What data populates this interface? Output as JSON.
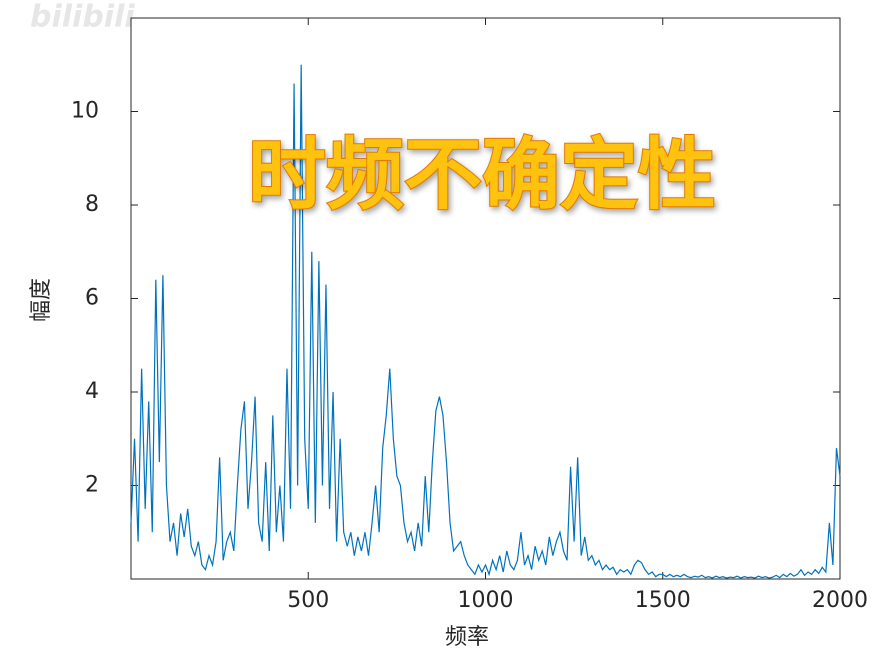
{
  "chart_data": {
    "type": "line",
    "annotation": "时频不确定性",
    "watermark": "bilibili",
    "xlabel": "频率",
    "ylabel": "幅度",
    "xlim": [
      0,
      2000
    ],
    "ylim": [
      0,
      12
    ],
    "xticks": [
      500,
      1000,
      1500,
      2000
    ],
    "yticks": [
      2,
      4,
      6,
      8,
      10
    ],
    "x": [
      0,
      10,
      20,
      30,
      40,
      50,
      60,
      70,
      80,
      90,
      100,
      110,
      120,
      130,
      140,
      150,
      160,
      170,
      180,
      190,
      200,
      210,
      220,
      230,
      240,
      250,
      260,
      270,
      280,
      290,
      300,
      310,
      320,
      330,
      340,
      350,
      360,
      370,
      380,
      390,
      400,
      410,
      420,
      430,
      440,
      450,
      460,
      470,
      480,
      490,
      500,
      510,
      520,
      530,
      540,
      550,
      560,
      570,
      580,
      590,
      600,
      610,
      620,
      630,
      640,
      650,
      660,
      670,
      680,
      690,
      700,
      710,
      720,
      730,
      740,
      750,
      760,
      770,
      780,
      790,
      800,
      810,
      820,
      830,
      840,
      850,
      860,
      870,
      880,
      890,
      900,
      910,
      920,
      930,
      940,
      950,
      960,
      970,
      980,
      990,
      1000,
      1010,
      1020,
      1030,
      1040,
      1050,
      1060,
      1070,
      1080,
      1090,
      1100,
      1110,
      1120,
      1130,
      1140,
      1150,
      1160,
      1170,
      1180,
      1190,
      1200,
      1210,
      1220,
      1230,
      1240,
      1250,
      1260,
      1270,
      1280,
      1290,
      1300,
      1310,
      1320,
      1330,
      1340,
      1350,
      1360,
      1370,
      1380,
      1390,
      1400,
      1410,
      1420,
      1430,
      1440,
      1450,
      1460,
      1470,
      1480,
      1490,
      1500,
      1510,
      1520,
      1530,
      1540,
      1550,
      1560,
      1570,
      1580,
      1590,
      1600,
      1610,
      1620,
      1630,
      1640,
      1650,
      1660,
      1670,
      1680,
      1690,
      1700,
      1710,
      1720,
      1730,
      1740,
      1750,
      1760,
      1770,
      1780,
      1790,
      1800,
      1810,
      1820,
      1830,
      1840,
      1850,
      1860,
      1870,
      1880,
      1890,
      1900,
      1910,
      1920,
      1930,
      1940,
      1950,
      1960,
      1970,
      1980,
      1990,
      2000
    ],
    "series": [
      {
        "color": "#0072bd",
        "values": [
          1.2,
          3.0,
          0.8,
          4.5,
          1.5,
          3.8,
          1.0,
          6.4,
          2.5,
          6.5,
          2.0,
          0.8,
          1.2,
          0.5,
          1.4,
          0.9,
          1.5,
          0.7,
          0.5,
          0.8,
          0.3,
          0.2,
          0.5,
          0.3,
          0.8,
          2.6,
          0.4,
          0.8,
          1.0,
          0.6,
          2.0,
          3.2,
          3.8,
          1.5,
          2.5,
          3.9,
          1.2,
          0.8,
          2.5,
          0.6,
          3.5,
          1.0,
          2.0,
          0.8,
          4.5,
          1.5,
          10.6,
          2.0,
          11.0,
          3.0,
          1.5,
          7.0,
          1.2,
          6.8,
          2.0,
          6.3,
          1.5,
          4.0,
          0.8,
          3.0,
          1.0,
          0.7,
          1.0,
          0.5,
          0.9,
          0.6,
          1.0,
          0.5,
          1.2,
          2.0,
          1.0,
          2.8,
          3.5,
          4.5,
          3.0,
          2.2,
          2.0,
          1.2,
          0.8,
          1.0,
          0.6,
          1.2,
          0.7,
          2.2,
          1.0,
          2.5,
          3.6,
          3.9,
          3.5,
          2.5,
          1.2,
          0.6,
          0.7,
          0.8,
          0.5,
          0.3,
          0.2,
          0.1,
          0.3,
          0.15,
          0.3,
          0.1,
          0.4,
          0.2,
          0.5,
          0.15,
          0.6,
          0.3,
          0.2,
          0.4,
          1.0,
          0.3,
          0.5,
          0.2,
          0.7,
          0.4,
          0.6,
          0.3,
          0.9,
          0.5,
          0.8,
          1.0,
          0.6,
          0.4,
          2.4,
          0.8,
          2.6,
          0.5,
          0.9,
          0.4,
          0.5,
          0.3,
          0.4,
          0.2,
          0.3,
          0.2,
          0.25,
          0.1,
          0.2,
          0.15,
          0.2,
          0.1,
          0.3,
          0.4,
          0.35,
          0.2,
          0.1,
          0.15,
          0.05,
          0.1,
          0.1,
          0.05,
          0.1,
          0.05,
          0.08,
          0.05,
          0.1,
          0.05,
          0.03,
          0.06,
          0.04,
          0.08,
          0.03,
          0.05,
          0.02,
          0.06,
          0.03,
          0.05,
          0.02,
          0.04,
          0.03,
          0.06,
          0.02,
          0.05,
          0.03,
          0.04,
          0.02,
          0.06,
          0.03,
          0.05,
          0.02,
          0.04,
          0.08,
          0.03,
          0.1,
          0.05,
          0.12,
          0.06,
          0.1,
          0.2,
          0.08,
          0.15,
          0.1,
          0.2,
          0.12,
          0.25,
          0.15,
          1.2,
          0.3,
          2.8,
          2.2
        ]
      }
    ]
  }
}
